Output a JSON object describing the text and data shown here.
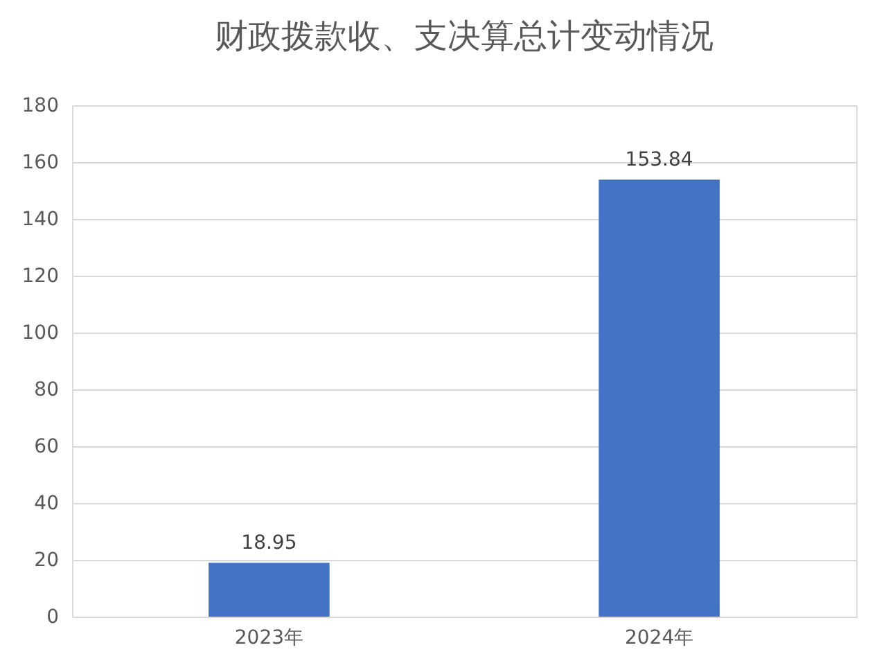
{
  "chart_data": {
    "type": "bar",
    "title": "财政拨款收、支决算总计变动情况",
    "categories": [
      "2023年",
      "2024年"
    ],
    "values": [
      18.95,
      153.84
    ],
    "color": "#4472c4",
    "ylim": [
      0,
      180
    ],
    "yticks": [
      0,
      20,
      40,
      60,
      80,
      100,
      120,
      140,
      160,
      180
    ],
    "grid": "y",
    "data_labels": true
  }
}
